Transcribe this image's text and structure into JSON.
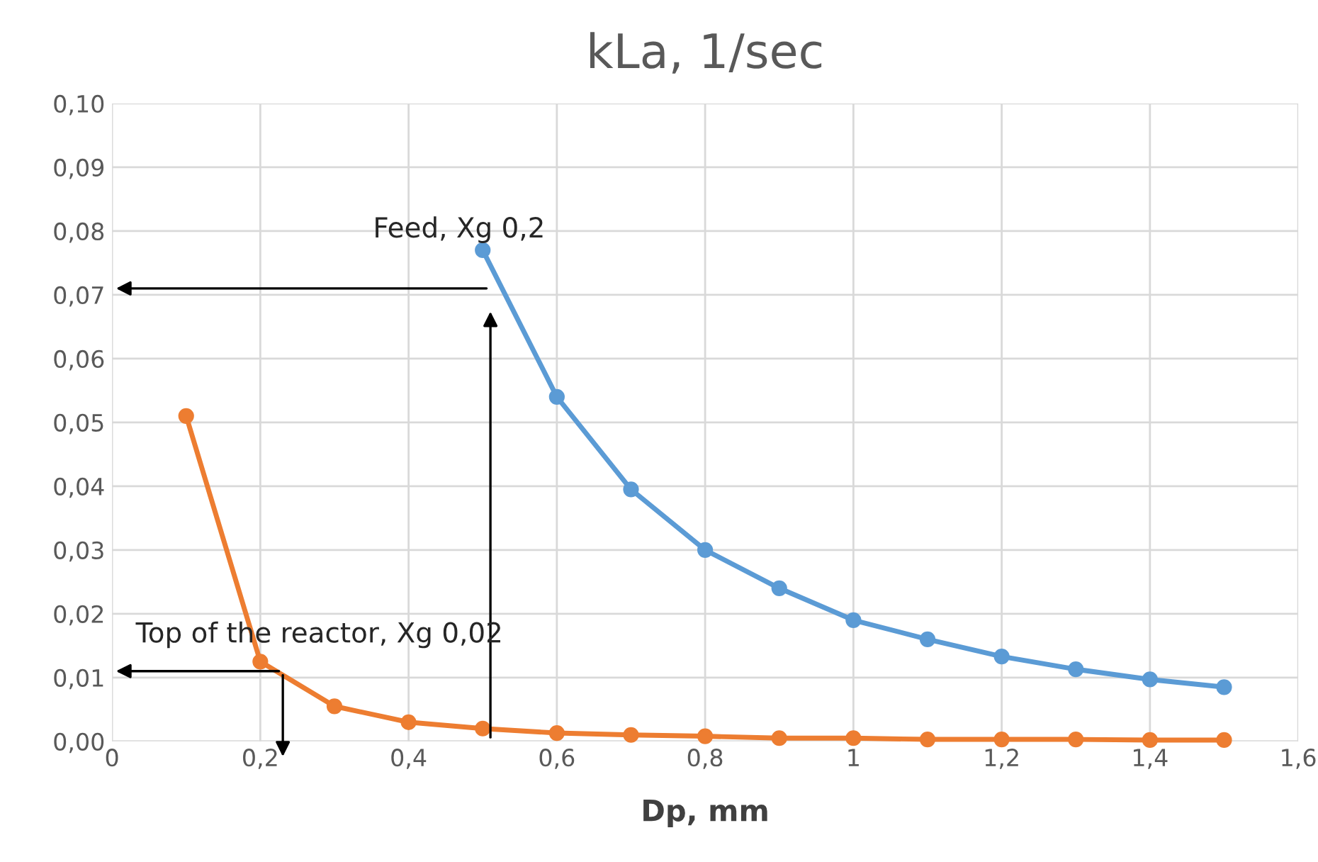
{
  "chart_data": {
    "type": "line",
    "title": "kLa, 1/sec",
    "xlabel": "Dp, mm",
    "series": [
      {
        "color": "#5b9bd5",
        "x": [
          0.5,
          0.6,
          0.7,
          0.8,
          0.9,
          1.0,
          1.1,
          1.2,
          1.3,
          1.4,
          1.5
        ],
        "values": [
          0.077,
          0.054,
          0.0395,
          0.03,
          0.024,
          0.019,
          0.016,
          0.0133,
          0.0113,
          0.0097,
          0.0085
        ]
      },
      {
        "color": "#ed7d31",
        "x": [
          0.1,
          0.2,
          0.3,
          0.4,
          0.5,
          0.6,
          0.7,
          0.8,
          0.9,
          1.0,
          1.1,
          1.2,
          1.3,
          1.4,
          1.5
        ],
        "values": [
          0.051,
          0.0125,
          0.0055,
          0.003,
          0.002,
          0.0013,
          0.001,
          0.0008,
          0.0005,
          0.0005,
          0.0003,
          0.0003,
          0.0003,
          0.0002,
          0.0002
        ]
      }
    ],
    "annotations": [
      "Feed, Xg 0,2",
      "Top of the reactor, Xg 0,02"
    ],
    "xlim": [
      0,
      1.6
    ],
    "ylim": [
      0,
      0.1
    ],
    "xticks": [
      0,
      {
        "value": 0.2,
        "label": "0,2"
      },
      {
        "value": 0.4,
        "label": "0,4"
      },
      {
        "value": 0.6,
        "label": "0,6"
      },
      {
        "value": 0.8,
        "label": "0,8"
      },
      1,
      {
        "value": 1.2,
        "label": "1,2"
      },
      {
        "value": 1.4,
        "label": "1,4"
      },
      {
        "value": 1.6,
        "label": "1,6"
      }
    ],
    "yticks": [
      {
        "value": 0,
        "label": "0,00"
      },
      {
        "value": 0.01,
        "label": "0,01"
      },
      {
        "value": 0.02,
        "label": "0,02"
      },
      {
        "value": 0.03,
        "label": "0,03"
      },
      {
        "value": 0.04,
        "label": "0,04"
      },
      {
        "value": 0.05,
        "label": "0,05"
      },
      {
        "value": 0.06,
        "label": "0,06"
      },
      {
        "value": 0.07,
        "label": "0,07"
      },
      {
        "value": 0.08,
        "label": "0,08"
      },
      {
        "value": 0.09,
        "label": "0,09"
      },
      {
        "value": 0.1,
        "label": "0,10"
      }
    ],
    "grid": true,
    "marker": "circle",
    "line_style": "solid"
  }
}
